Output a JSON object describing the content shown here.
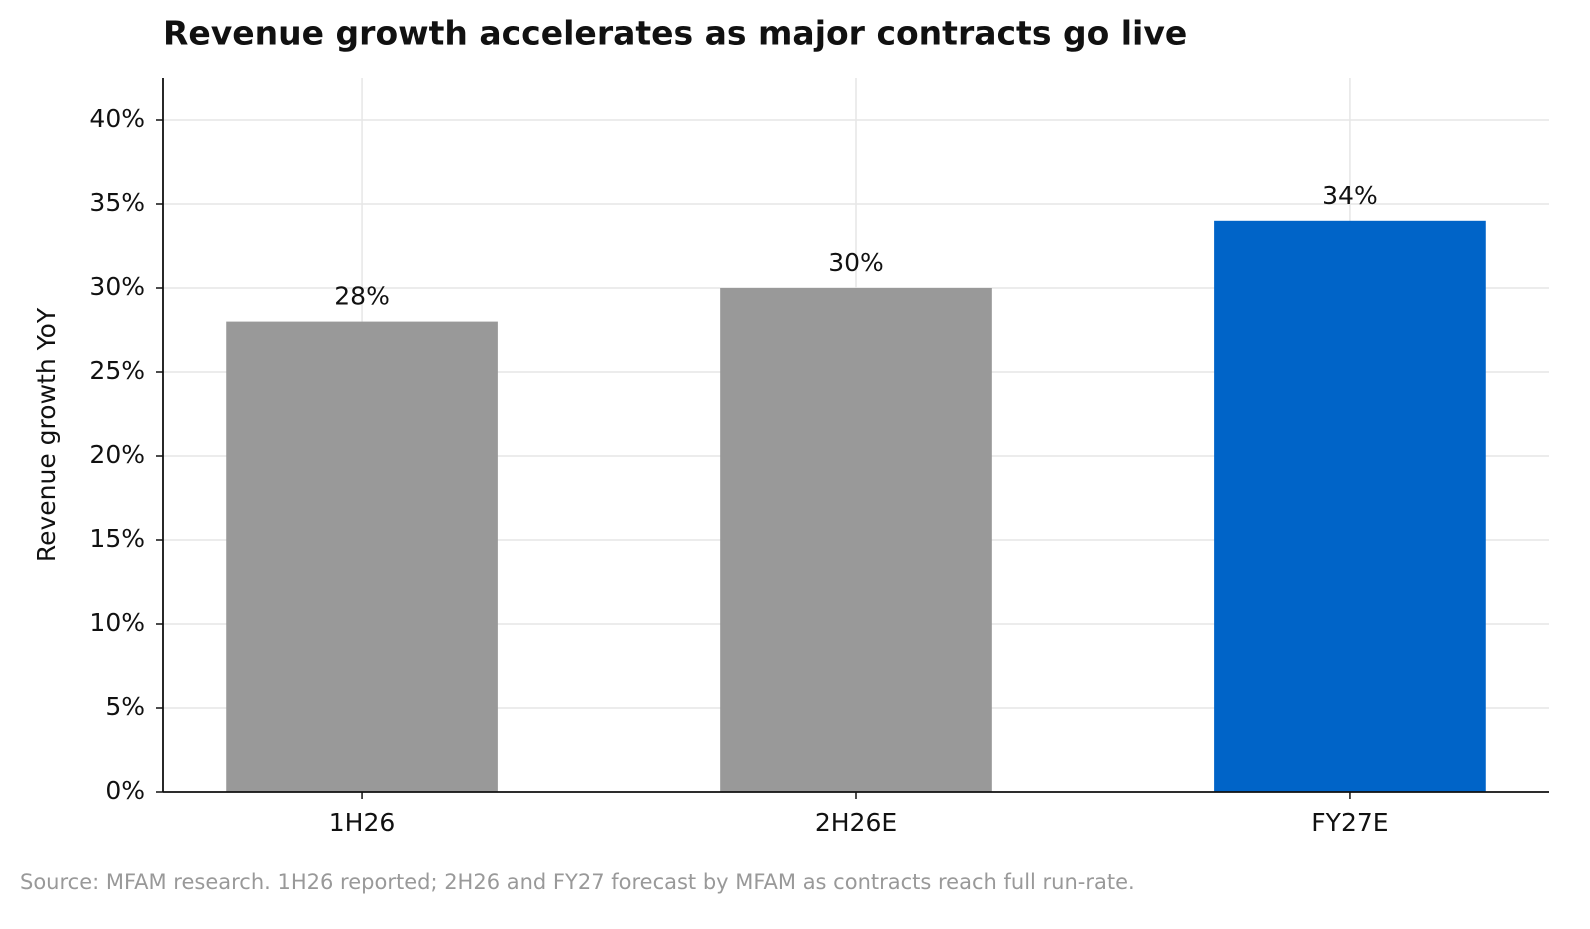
{
  "chart_data": {
    "type": "bar",
    "title": "Revenue growth accelerates as major contracts go live",
    "y_label": "Revenue growth YoY",
    "source": "Source: MFAM research. 1H26 reported; 2H26 and FY27 forecast by MFAM as contracts reach full run-rate.",
    "categories": [
      "1H26",
      "2H26E",
      "FY27E"
    ],
    "values": [
      28,
      30,
      34
    ],
    "value_labels": [
      "28%",
      "30%",
      "34%"
    ],
    "colors": [
      "#999999",
      "#999999",
      "#0064c8"
    ],
    "ylim": [
      0,
      42.5
    ],
    "yticks": [
      {
        "value": 0,
        "label": "0%"
      },
      {
        "value": 5,
        "label": "5%"
      },
      {
        "value": 10,
        "label": "10%"
      },
      {
        "value": 15,
        "label": "15%"
      },
      {
        "value": 20,
        "label": "20%"
      },
      {
        "value": 25,
        "label": "25%"
      },
      {
        "value": 30,
        "label": "30%"
      },
      {
        "value": 35,
        "label": "35%"
      },
      {
        "value": 40,
        "label": "40%"
      }
    ],
    "grid": true
  }
}
